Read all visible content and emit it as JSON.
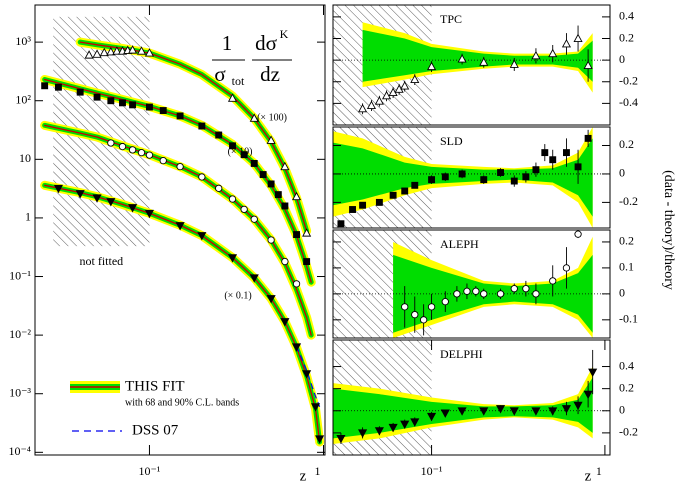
{
  "chart_data": [
    {
      "type": "line",
      "log_x": true,
      "log_y": true,
      "xlim": [
        0.022,
        1.02
      ],
      "ylim": [
        9e-05,
        4300
      ],
      "xticks": [
        {
          "value": 0.1,
          "label": "10⁻¹"
        },
        1
      ],
      "yticks": [
        {
          "value": 1000,
          "label": "10³"
        },
        {
          "value": 100,
          "label": "10²"
        },
        10,
        1,
        {
          "value": 0.1,
          "label": "10⁻¹"
        },
        {
          "value": 0.01,
          "label": "10⁻²"
        },
        {
          "value": 0.001,
          "label": "10⁻³"
        },
        {
          "value": 0.0001,
          "label": "10⁻⁴"
        }
      ],
      "xlabel": "z",
      "excluded_region": {
        "x": [
          0.028,
          0.1
        ],
        "y": [
          0.33,
          2700
        ],
        "label": "not fitted"
      },
      "formula": {
        "numerator_left": "1",
        "denominator_left": "σ",
        "denominator_left_sub": "tot",
        "numerator_right": "dσ",
        "numerator_right_sup": "K",
        "denominator_right": "dz"
      },
      "band90_color": "#ffff00",
      "band68_color": "#00dd00",
      "fit_color": "#cc0000",
      "dss_color": "#0000ee",
      "legend": {
        "fit": "THIS FIT",
        "fit_note": "with 68 and 90% C.L. bands",
        "dss": "DSS 07"
      },
      "datasets": [
        {
          "marker": "triangle-open",
          "scale_label": "(× 100)",
          "z": [
            0.045,
            0.05,
            0.055,
            0.06,
            0.065,
            0.07,
            0.075,
            0.08,
            0.09,
            0.1,
            0.3,
            0.4,
            0.5,
            0.6,
            0.7,
            0.8
          ],
          "values": [
            600,
            620,
            660,
            680,
            700,
            700,
            720,
            730,
            700,
            650,
            110,
            50,
            21,
            7.5,
            2.3,
            0.55
          ],
          "fit_z": [
            0.04,
            0.05,
            0.07,
            0.1,
            0.15,
            0.2,
            0.3,
            0.4,
            0.5,
            0.6,
            0.7,
            0.8
          ],
          "fit": [
            1000,
            900,
            780,
            650,
            420,
            280,
            120,
            50,
            20,
            7,
            2.2,
            0.6
          ]
        },
        {
          "marker": "square-filled",
          "scale_label": "(× 10)",
          "z": [
            0.025,
            0.03,
            0.04,
            0.05,
            0.06,
            0.07,
            0.08,
            0.1,
            0.12,
            0.15,
            0.2,
            0.25,
            0.3,
            0.35,
            0.4,
            0.45,
            0.5,
            0.55,
            0.6,
            0.7,
            0.8
          ],
          "values": [
            180,
            170,
            140,
            115,
            100,
            92,
            85,
            78,
            68,
            55,
            37,
            26,
            17,
            12,
            8.5,
            5.5,
            3.8,
            2.5,
            1.6,
            0.52,
            0.18
          ],
          "fit_z": [
            0.025,
            0.04,
            0.05,
            0.07,
            0.1,
            0.15,
            0.2,
            0.3,
            0.4,
            0.5,
            0.6,
            0.7,
            0.8,
            0.85
          ],
          "fit": [
            230,
            160,
            135,
            105,
            80,
            55,
            38,
            18,
            8.5,
            3.6,
            1.4,
            0.5,
            0.15,
            0.08
          ]
        },
        {
          "marker": "circle-open",
          "z": [
            0.06,
            0.07,
            0.08,
            0.09,
            0.1,
            0.12,
            0.15,
            0.2,
            0.25,
            0.3,
            0.35,
            0.4,
            0.5,
            0.6,
            0.7
          ],
          "values": [
            19,
            16.5,
            14.5,
            13,
            11.8,
            9.5,
            7.5,
            5,
            3.2,
            2.1,
            1.4,
            0.95,
            0.42,
            0.18,
            0.075
          ],
          "fit_z": [
            0.025,
            0.04,
            0.05,
            0.07,
            0.1,
            0.15,
            0.2,
            0.3,
            0.4,
            0.5,
            0.6,
            0.7,
            0.8,
            0.85
          ],
          "fit": [
            38,
            28,
            24,
            17,
            12,
            7.5,
            5,
            2.1,
            0.95,
            0.42,
            0.17,
            0.06,
            0.02,
            0.01
          ]
        },
        {
          "marker": "triangle-down-filled",
          "scale_label": "(× 0.1)",
          "z": [
            0.03,
            0.04,
            0.05,
            0.06,
            0.08,
            0.1,
            0.15,
            0.2,
            0.3,
            0.4,
            0.5,
            0.6,
            0.7,
            0.8,
            0.9,
            0.95
          ],
          "values": [
            3.2,
            2.6,
            2.2,
            1.9,
            1.5,
            1.2,
            0.74,
            0.5,
            0.21,
            0.095,
            0.042,
            0.017,
            0.0063,
            0.0022,
            0.0006,
            0.00017
          ],
          "fit_z": [
            0.025,
            0.04,
            0.05,
            0.07,
            0.1,
            0.15,
            0.2,
            0.3,
            0.4,
            0.5,
            0.6,
            0.7,
            0.8,
            0.9,
            0.95
          ],
          "fit": [
            3.6,
            2.7,
            2.3,
            1.7,
            1.2,
            0.75,
            0.5,
            0.21,
            0.095,
            0.042,
            0.017,
            0.0062,
            0.002,
            0.00055,
            0.00015
          ],
          "dss_z": [
            0.7,
            0.8,
            0.9,
            0.95
          ],
          "dss": [
            0.0065,
            0.0025,
            0.0009,
            0.0006
          ]
        }
      ]
    },
    {
      "type": "band",
      "label": "TPC",
      "marker": "triangle-open",
      "log_x": true,
      "ytick_side": "right",
      "xlim": [
        0.027,
        1.07
      ],
      "ylim": [
        -0.6,
        0.51
      ],
      "yticks": [
        0.4,
        0.2,
        0,
        -0.2,
        -0.4
      ],
      "reference": 0,
      "excluded_region": {
        "x": [
          0.027,
          0.1
        ]
      },
      "band_z": [
        0.04,
        0.07,
        0.1,
        0.2,
        0.3,
        0.5,
        0.7,
        0.85
      ],
      "band90_lo": [
        -0.25,
        -0.18,
        -0.13,
        -0.08,
        -0.06,
        -0.06,
        -0.1,
        -0.3
      ],
      "band90_hi": [
        0.35,
        0.25,
        0.15,
        0.08,
        0.06,
        0.06,
        0.08,
        0.25
      ],
      "band68_lo": [
        -0.2,
        -0.14,
        -0.1,
        -0.06,
        -0.04,
        -0.04,
        -0.07,
        -0.2
      ],
      "band68_hi": [
        0.28,
        0.2,
        0.12,
        0.06,
        0.04,
        0.04,
        0.06,
        0.18
      ],
      "z": [
        0.04,
        0.045,
        0.05,
        0.055,
        0.06,
        0.065,
        0.07,
        0.08,
        0.1,
        0.15,
        0.2,
        0.3,
        0.4,
        0.5,
        0.6,
        0.7,
        0.8
      ],
      "values": [
        -0.45,
        -0.42,
        -0.38,
        -0.33,
        -0.3,
        -0.27,
        -0.24,
        -0.18,
        -0.06,
        0.01,
        -0.02,
        -0.04,
        0.04,
        0.06,
        0.15,
        0.2,
        -0.05
      ],
      "errors": [
        0.05,
        0.05,
        0.05,
        0.05,
        0.05,
        0.05,
        0.05,
        0.05,
        0.05,
        0.05,
        0.05,
        0.06,
        0.07,
        0.08,
        0.1,
        0.12,
        0.15
      ]
    },
    {
      "type": "band",
      "label": "SLD",
      "marker": "square-filled",
      "log_x": true,
      "ytick_side": "right",
      "ylabel": "(data - theory)/theory",
      "xlim": [
        0.027,
        1.07
      ],
      "ylim": [
        -0.38,
        0.33
      ],
      "yticks": [
        0.2,
        0,
        -0.2
      ],
      "reference": 0,
      "excluded_region": {
        "x": [
          0.027,
          0.1
        ]
      },
      "band_z": [
        0.027,
        0.04,
        0.07,
        0.1,
        0.2,
        0.3,
        0.5,
        0.7,
        0.85
      ],
      "band90_lo": [
        -0.3,
        -0.25,
        -0.15,
        -0.1,
        -0.07,
        -0.06,
        -0.08,
        -0.2,
        -0.38
      ],
      "band90_hi": [
        0.3,
        0.25,
        0.12,
        0.07,
        0.05,
        0.04,
        0.06,
        0.15,
        0.33
      ],
      "band68_lo": [
        -0.22,
        -0.18,
        -0.1,
        -0.07,
        -0.05,
        -0.04,
        -0.06,
        -0.15,
        -0.3
      ],
      "band68_hi": [
        0.22,
        0.18,
        0.08,
        0.05,
        0.03,
        0.03,
        0.04,
        0.1,
        0.25
      ],
      "z": [
        0.03,
        0.035,
        0.04,
        0.05,
        0.06,
        0.07,
        0.08,
        0.1,
        0.12,
        0.15,
        0.2,
        0.25,
        0.3,
        0.35,
        0.4,
        0.45,
        0.5,
        0.6,
        0.7,
        0.8
      ],
      "values": [
        -0.35,
        -0.25,
        -0.22,
        -0.2,
        -0.15,
        -0.12,
        -0.08,
        -0.04,
        -0.02,
        0,
        -0.04,
        0.01,
        -0.05,
        -0.02,
        0.03,
        0.15,
        0.1,
        0.15,
        0.05,
        0.25
      ],
      "errors": [
        0.02,
        0.02,
        0.02,
        0.02,
        0.02,
        0.02,
        0.02,
        0.03,
        0.03,
        0.03,
        0.03,
        0.03,
        0.04,
        0.04,
        0.05,
        0.06,
        0.07,
        0.1,
        0.12,
        0.06
      ]
    },
    {
      "type": "band",
      "label": "ALEPH",
      "marker": "circle-open",
      "log_x": true,
      "ytick_side": "right",
      "xlim": [
        0.027,
        1.07
      ],
      "ylim": [
        -0.17,
        0.246
      ],
      "yticks": [
        0.2,
        0.1,
        0,
        -0.1
      ],
      "reference": 0,
      "excluded_region": {
        "x": [
          0.027,
          0.1
        ]
      },
      "band_z": [
        0.06,
        0.1,
        0.2,
        0.3,
        0.5,
        0.7,
        0.85
      ],
      "band90_lo": [
        -0.17,
        -0.12,
        -0.05,
        -0.04,
        -0.05,
        -0.1,
        -0.17
      ],
      "band90_hi": [
        0.2,
        0.13,
        0.05,
        0.04,
        0.05,
        0.1,
        0.22
      ],
      "band68_lo": [
        -0.15,
        -0.1,
        -0.04,
        -0.03,
        -0.04,
        -0.08,
        -0.15
      ],
      "band68_hi": [
        0.15,
        0.1,
        0.04,
        0.03,
        0.04,
        0.08,
        0.15
      ],
      "z": [
        0.07,
        0.08,
        0.09,
        0.1,
        0.12,
        0.14,
        0.16,
        0.18,
        0.2,
        0.25,
        0.3,
        0.35,
        0.4,
        0.5,
        0.6,
        0.7
      ],
      "values": [
        -0.05,
        -0.08,
        -0.1,
        -0.05,
        -0.03,
        0,
        0.01,
        0.01,
        0,
        0,
        0.02,
        0.02,
        0,
        0.05,
        0.1,
        0.23
      ],
      "errors": [
        0.08,
        0.07,
        0.06,
        0.05,
        0.04,
        0.03,
        0.03,
        0.02,
        0.02,
        0.02,
        0.02,
        0.03,
        0.04,
        0.06,
        0.08,
        0.015
      ]
    },
    {
      "type": "band",
      "label": "DELPHI",
      "marker": "triangle-down-filled",
      "log_x": true,
      "ytick_side": "right",
      "xlim": [
        0.027,
        1.07
      ],
      "ylim": [
        -0.4,
        0.64
      ],
      "yticks": [
        0.4,
        0.2,
        0,
        -0.2
      ],
      "reference": 0,
      "xticks": [
        {
          "value": 0.1,
          "label": "10⁻¹"
        },
        1
      ],
      "xlabel": "z",
      "excluded_region": {
        "x": [
          0.027,
          0.1
        ]
      },
      "band_z": [
        0.027,
        0.05,
        0.1,
        0.2,
        0.3,
        0.5,
        0.7,
        0.85
      ],
      "band90_lo": [
        -0.3,
        -0.25,
        -0.15,
        -0.08,
        -0.06,
        -0.08,
        -0.15,
        -0.25
      ],
      "band90_hi": [
        0.25,
        0.2,
        0.12,
        0.06,
        0.05,
        0.07,
        0.15,
        0.4
      ],
      "band68_lo": [
        -0.25,
        -0.2,
        -0.12,
        -0.06,
        -0.05,
        -0.06,
        -0.1,
        -0.2
      ],
      "band68_hi": [
        0.2,
        0.15,
        0.08,
        0.04,
        0.04,
        0.05,
        0.1,
        0.3
      ],
      "z": [
        0.03,
        0.04,
        0.05,
        0.06,
        0.07,
        0.08,
        0.1,
        0.12,
        0.15,
        0.2,
        0.25,
        0.3,
        0.4,
        0.5,
        0.6,
        0.7,
        0.8,
        0.85
      ],
      "values": [
        -0.25,
        -0.2,
        -0.18,
        -0.15,
        -0.12,
        -0.1,
        -0.05,
        -0.02,
        0,
        0,
        0.02,
        0,
        0,
        0,
        0.02,
        0.05,
        0.15,
        0.35
      ],
      "errors": [
        0.05,
        0.05,
        0.04,
        0.04,
        0.04,
        0.04,
        0.04,
        0.03,
        0.03,
        0.03,
        0.03,
        0.03,
        0.03,
        0.04,
        0.06,
        0.08,
        0.12,
        0.2
      ]
    }
  ]
}
